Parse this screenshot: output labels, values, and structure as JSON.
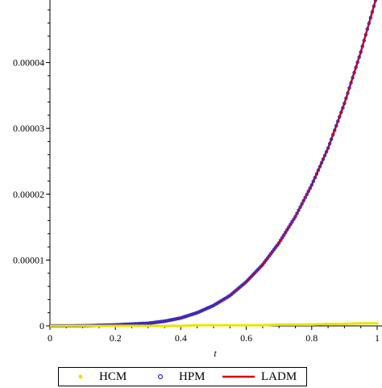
{
  "chart_data": {
    "type": "line",
    "xlabel": "t",
    "ylabel": "",
    "title": "",
    "xlim": [
      0,
      1
    ],
    "ylim": [
      0,
      4.95e-05
    ],
    "x_ticks": [
      0,
      0.2,
      0.4,
      0.6,
      0.8,
      1
    ],
    "x_tick_labels": [
      "0",
      "0.2",
      "0.4",
      "0.6",
      "0.8",
      "1"
    ],
    "y_ticks": [
      0,
      1e-05,
      2e-05,
      3e-05,
      4e-05
    ],
    "y_tick_labels": [
      "0",
      "0.00001",
      "0.00002",
      "0.00003",
      "0.00004"
    ],
    "legend_position": "bottom",
    "grid": false,
    "x": [
      0,
      0.1,
      0.2,
      0.3,
      0.35,
      0.4,
      0.45,
      0.5,
      0.55,
      0.6,
      0.65,
      0.7,
      0.75,
      0.8,
      0.85,
      0.9,
      0.95,
      1.0
    ],
    "series": [
      {
        "name": "HCM",
        "color": "#e6e600",
        "style": "points",
        "values": [
          0,
          0,
          0,
          0,
          0,
          0,
          1e-07,
          1e-07,
          1e-07,
          1e-07,
          1e-07,
          2e-07,
          2e-07,
          2e-07,
          3e-07,
          3e-07,
          4e-07,
          4e-07
        ]
      },
      {
        "name": "HPM",
        "color": "#2b2bd6",
        "style": "points",
        "values": [
          0,
          1e-08,
          1.5e-07,
          4e-07,
          7e-07,
          1.2e-06,
          2e-06,
          3.1e-06,
          4.6e-06,
          6.7e-06,
          9.3e-06,
          1.26e-05,
          1.66e-05,
          2.14e-05,
          2.7e-05,
          3.38e-05,
          4.16e-05,
          5.03e-05
        ]
      },
      {
        "name": "LADM",
        "color": "#d40000",
        "style": "line",
        "values": [
          0,
          1e-08,
          1.5e-07,
          4e-07,
          7e-07,
          1.2e-06,
          2e-06,
          3.1e-06,
          4.6e-06,
          6.7e-06,
          9.3e-06,
          1.26e-05,
          1.66e-05,
          2.14e-05,
          2.7e-05,
          3.38e-05,
          4.16e-05,
          5.03e-05
        ]
      }
    ]
  }
}
